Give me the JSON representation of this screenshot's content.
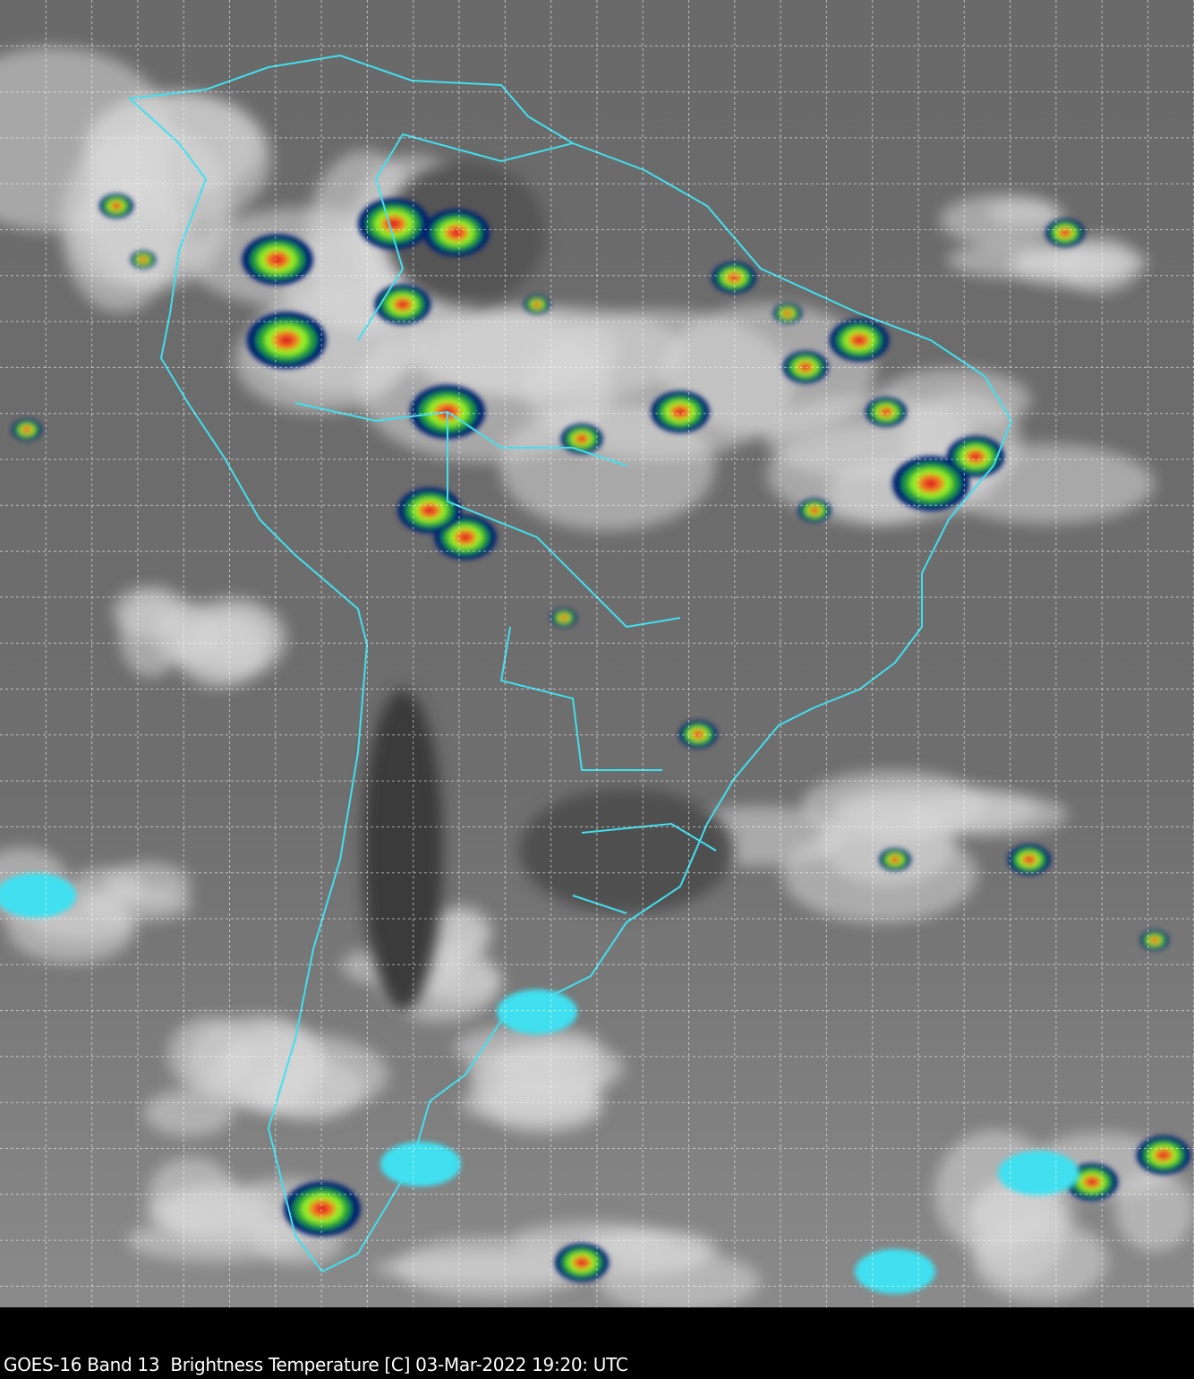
{
  "caption": "GOES-16 Band 13  Brightness Temperature [C] 03-Mar-2022 19:20: UTC",
  "map": {
    "product": "GOES-16 Band 13 Brightness Temperature",
    "units": "C",
    "datetime": "03-Mar-2022 19:20 UTC",
    "border_color": "#40e0f0",
    "grid_color": "#ffffff",
    "colormap": [
      "#ffffff",
      "#3fe0f0",
      "#0a7ac0",
      "#06206e",
      "#1e9e3a",
      "#8ef028",
      "#f0f020",
      "#f08020",
      "#e02020",
      "#600000"
    ]
  }
}
